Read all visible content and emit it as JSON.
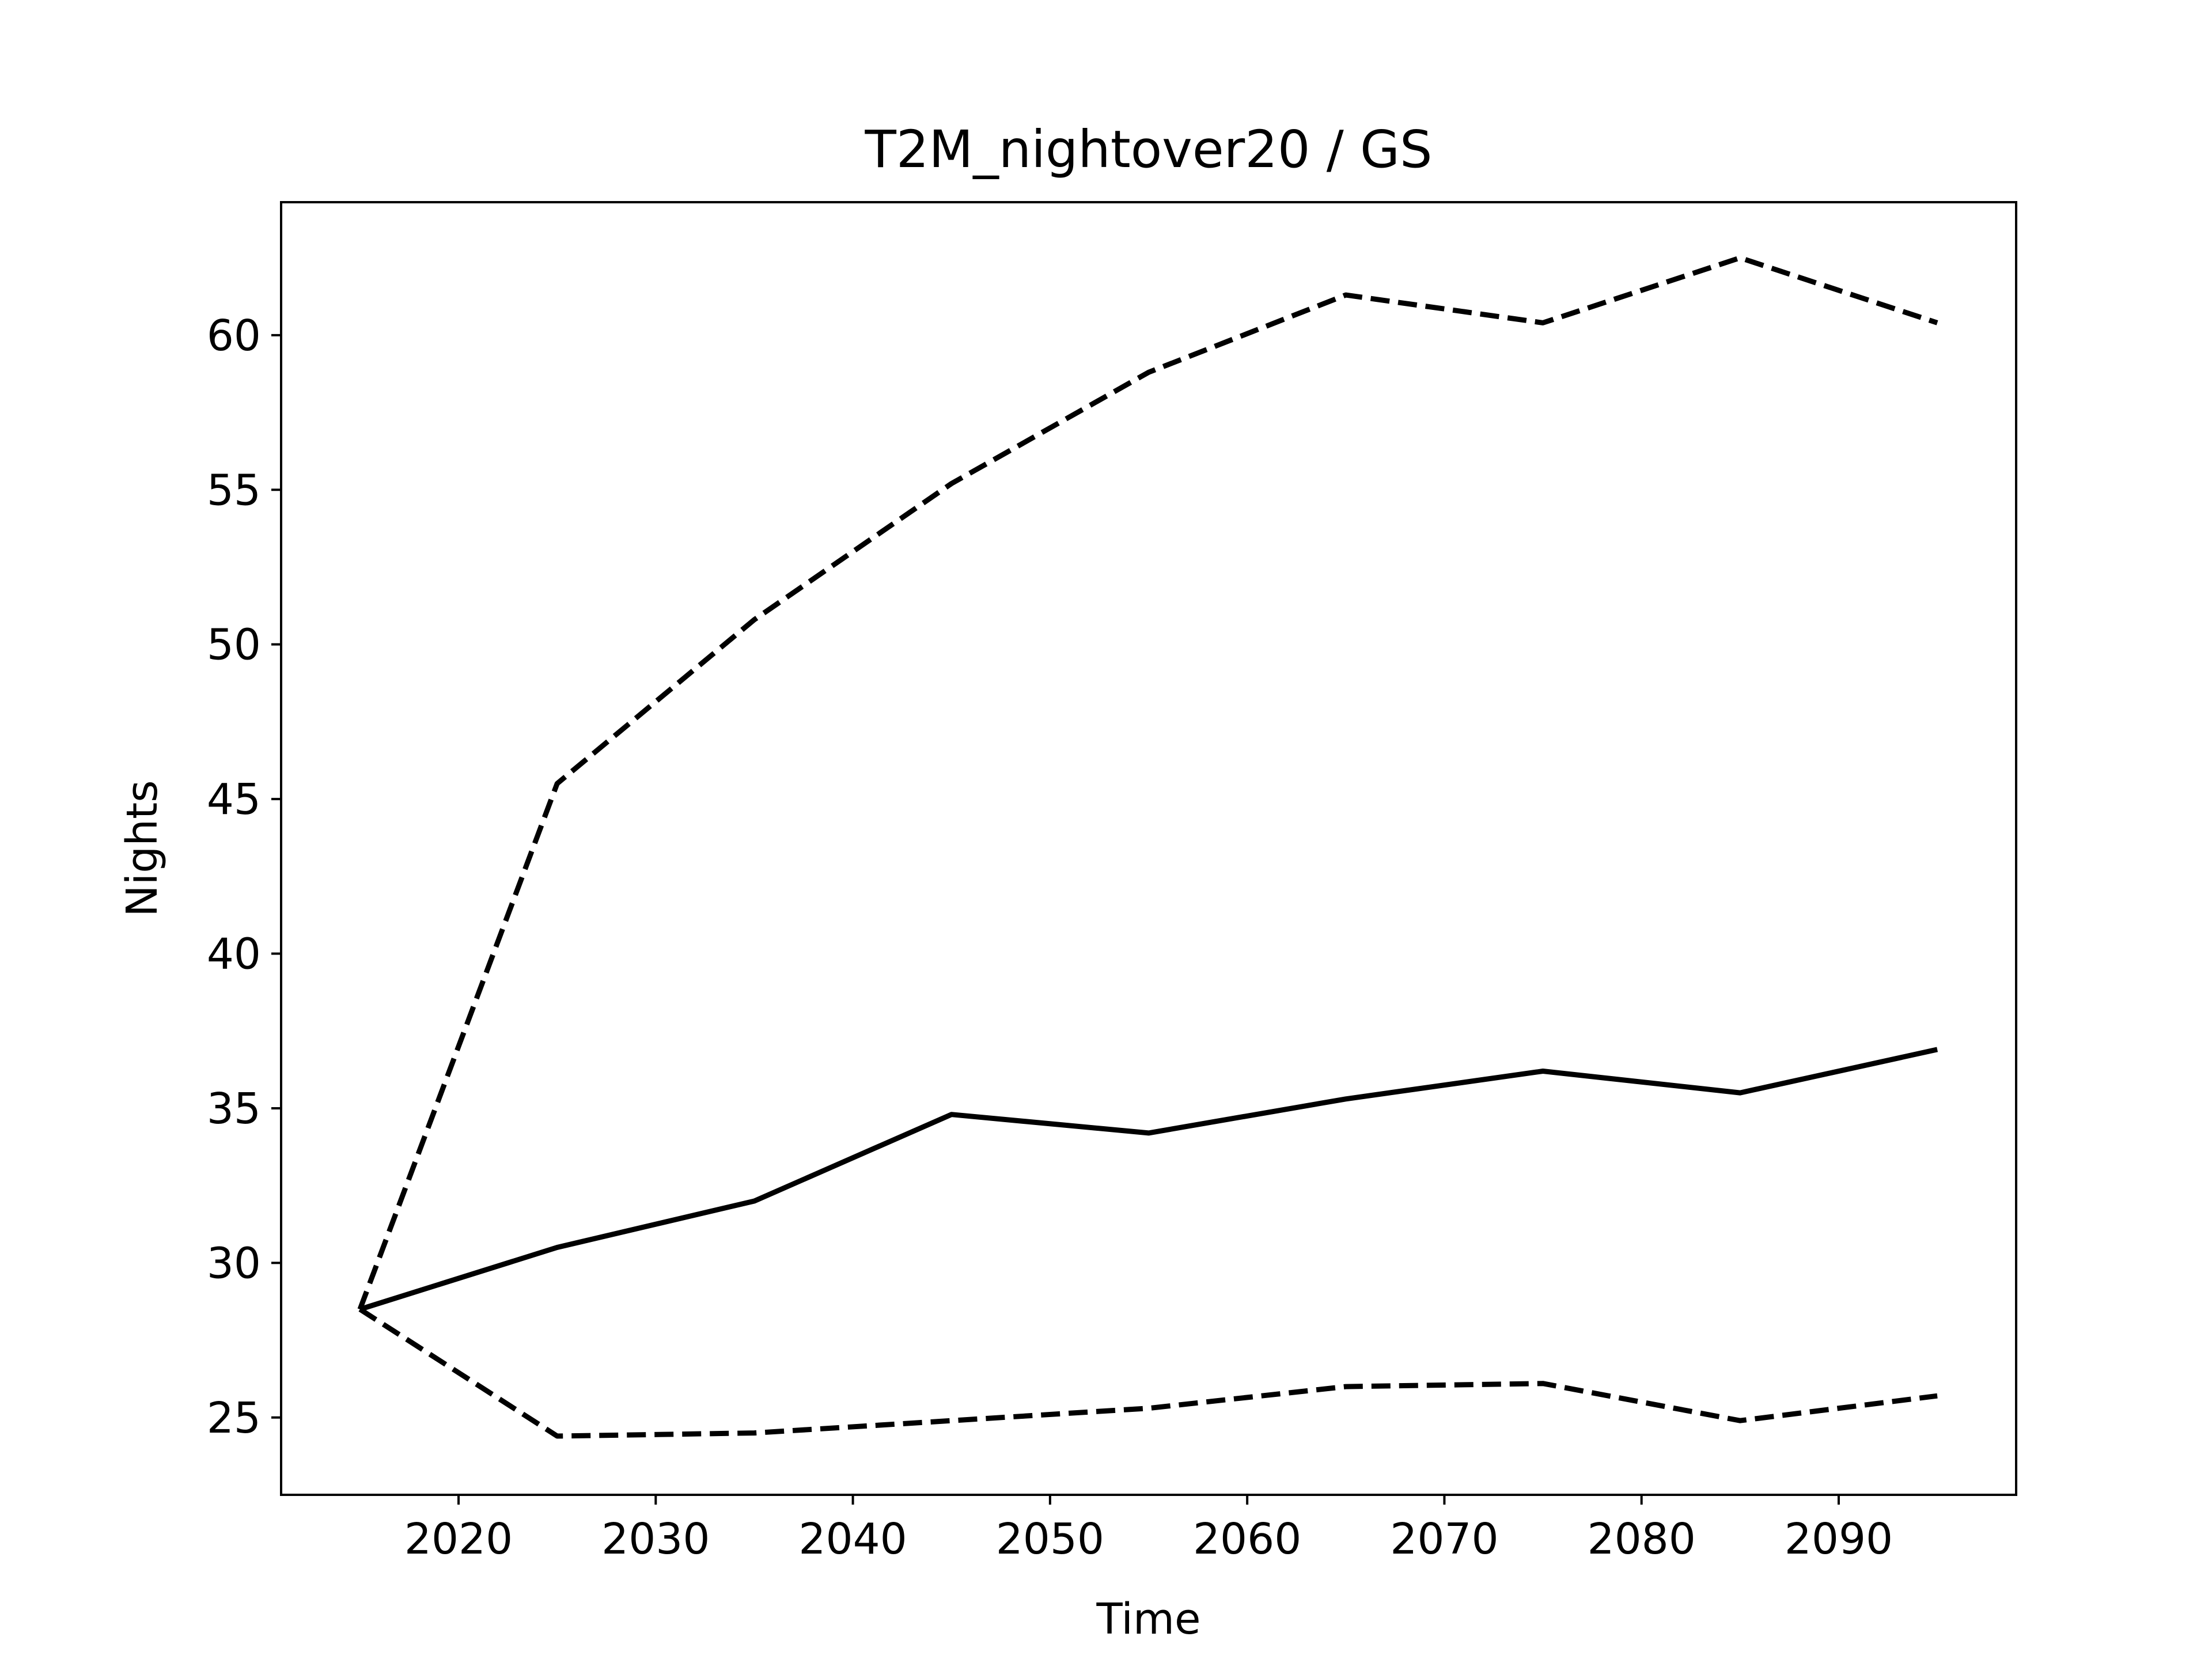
{
  "chart_data": {
    "type": "line",
    "title": "T2M_nightover20 / GS",
    "xlabel": "Time",
    "ylabel": "Nights",
    "xlim": [
      2011,
      2099
    ],
    "ylim": [
      22.5,
      64.3
    ],
    "xticks": [
      2020,
      2030,
      2040,
      2050,
      2060,
      2070,
      2080,
      2090
    ],
    "yticks": [
      25,
      30,
      35,
      40,
      45,
      50,
      55,
      60
    ],
    "grid": false,
    "legend": "none",
    "x": [
      2015,
      2025,
      2035,
      2045,
      2055,
      2065,
      2075,
      2085,
      2095
    ],
    "series": [
      {
        "style": "solid",
        "color": "#000000",
        "values": [
          28.5,
          30.5,
          32.0,
          34.8,
          34.2,
          35.3,
          36.2,
          35.5,
          36.9
        ]
      },
      {
        "style": "dashed",
        "color": "#000000",
        "values": [
          28.5,
          45.5,
          50.8,
          55.2,
          58.8,
          61.3,
          60.4,
          62.5,
          60.4
        ]
      },
      {
        "style": "dashed",
        "color": "#000000",
        "values": [
          28.5,
          24.4,
          24.5,
          24.9,
          25.3,
          26.0,
          26.1,
          24.9,
          25.7
        ]
      }
    ]
  }
}
